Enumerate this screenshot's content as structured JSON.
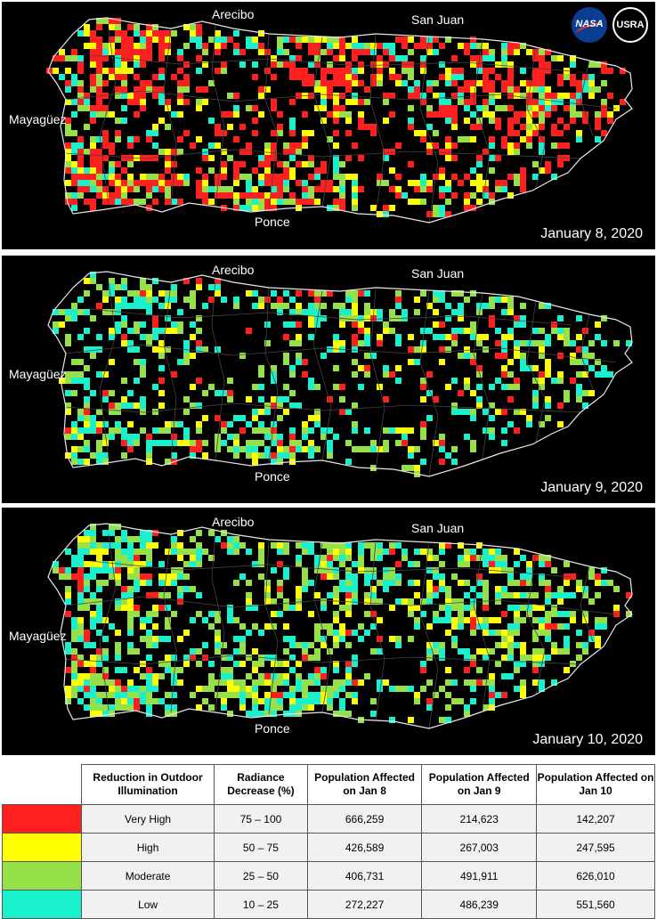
{
  "logos": {
    "nasa": "NASA",
    "usra": "USRA"
  },
  "colors": {
    "very_high": "#ff1f1f",
    "high": "#ffff00",
    "moderate": "#96e04a",
    "low": "#19f0cc",
    "outline": "#e8e8e8"
  },
  "panels": [
    {
      "date": "January 8, 2020",
      "cities": {
        "arecibo": "Arecibo",
        "san_juan": "San Juan",
        "mayaguez": "Mayagüez",
        "ponce": "Ponce"
      }
    },
    {
      "date": "January 9, 2020",
      "cities": {
        "arecibo": "Arecibo",
        "san_juan": "San Juan",
        "mayaguez": "Mayagüez",
        "ponce": "Ponce"
      }
    },
    {
      "date": "January 10, 2020",
      "cities": {
        "arecibo": "Arecibo",
        "san_juan": "San Juan",
        "mayaguez": "Mayagüez",
        "ponce": "Ponce"
      }
    }
  ],
  "legend": {
    "headers": [
      "Reduction in Outdoor Illumination",
      "Radiance Decrease (%)",
      "Population Affected on Jan 8",
      "Population Affected on Jan 9",
      "Population Affected on Jan 10"
    ],
    "rows": [
      {
        "class": "very_high",
        "label": "Very High",
        "range": "75 – 100",
        "jan8": "666,259",
        "jan9": "214,623",
        "jan10": "142,207"
      },
      {
        "class": "high",
        "label": "High",
        "range": "50 – 75",
        "jan8": "426,589",
        "jan9": "267,003",
        "jan10": "247,595"
      },
      {
        "class": "moderate",
        "label": "Moderate",
        "range": "25 – 50",
        "jan8": "406,731",
        "jan9": "491,911",
        "jan10": "626,010"
      },
      {
        "class": "low",
        "label": "Low",
        "range": "10 – 25",
        "jan8": "272,227",
        "jan9": "486,239",
        "jan10": "551,560"
      }
    ]
  }
}
